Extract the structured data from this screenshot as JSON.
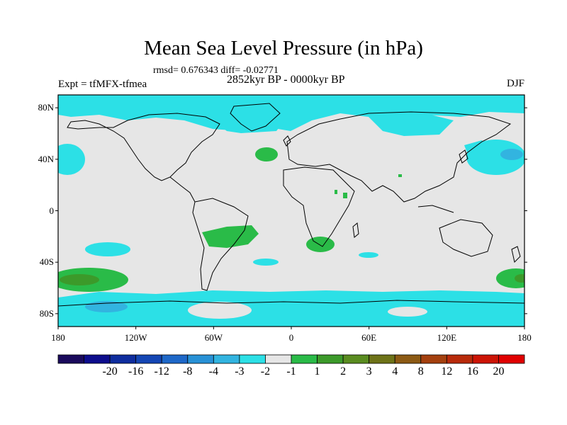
{
  "title": "Mean Sea Level Pressure (in hPa)",
  "stats": "rmsd= 0.676343 diff= -0.02771",
  "experiment": "Expt = tfMFX-tfmea",
  "period": "2852kyr BP - 0000kyr BP",
  "season": "DJF",
  "map": {
    "lat_range": [
      -90,
      90
    ],
    "lon_range": [
      -180,
      180
    ],
    "lat_ticks": [
      {
        "value": 80,
        "label": "80N"
      },
      {
        "value": 40,
        "label": "40N"
      },
      {
        "value": 0,
        "label": "0"
      },
      {
        "value": -40,
        "label": "40S"
      },
      {
        "value": -80,
        "label": "80S"
      }
    ],
    "lon_ticks": [
      {
        "value": -180,
        "label": "180"
      },
      {
        "value": -120,
        "label": "120W"
      },
      {
        "value": -60,
        "label": "60W"
      },
      {
        "value": 0,
        "label": "0"
      },
      {
        "value": 60,
        "label": "60E"
      },
      {
        "value": 120,
        "label": "120E"
      },
      {
        "value": 180,
        "label": "180"
      }
    ]
  },
  "colorbar": {
    "colors": [
      "#1a0a5c",
      "#0d0d8c",
      "#0f2d9e",
      "#1446b4",
      "#1e68c8",
      "#2891d6",
      "#32b4e0",
      "#2ce0e6",
      "#e6e6e6",
      "#2abb48",
      "#3c9a2a",
      "#5a8c20",
      "#6e7318",
      "#8c5a14",
      "#a4400e",
      "#b82a0a",
      "#cc1405",
      "#e00000"
    ],
    "labels": [
      "-20",
      "-16",
      "-12",
      "-8",
      "-4",
      "-3",
      "-2",
      "-1",
      "1",
      "2",
      "3",
      "4",
      "8",
      "12",
      "16",
      "20"
    ]
  }
}
